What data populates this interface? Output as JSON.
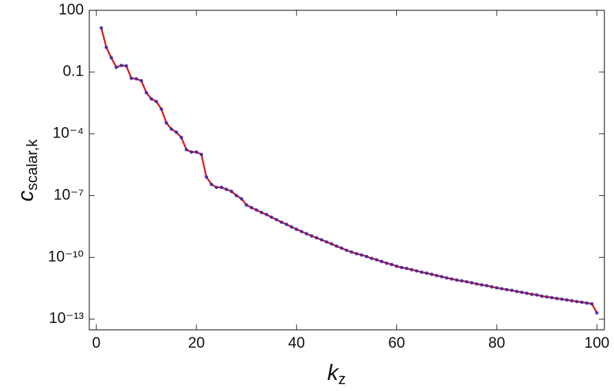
{
  "chart_data": {
    "type": "line",
    "log_y": true,
    "grid": false,
    "xlabel": {
      "main": "k",
      "sub": "z"
    },
    "ylabel": {
      "main": "c",
      "sub": "scalar,k"
    },
    "xlim": [
      -1.4,
      101.5
    ],
    "xticks": [
      0,
      20,
      40,
      60,
      80,
      100
    ],
    "ylim": [
      3e-14,
      100
    ],
    "yticks": [
      100,
      0.1,
      {
        "value": 0.0001,
        "label": "10⁻⁴"
      },
      {
        "value": 1e-07,
        "label": "10⁻⁷"
      },
      {
        "value": 1e-10,
        "label": "10⁻¹⁰"
      },
      {
        "value": 1e-13,
        "label": "10⁻¹³"
      }
    ],
    "x": [
      1,
      2,
      3,
      4,
      5,
      6,
      7,
      8,
      9,
      10,
      11,
      12,
      13,
      14,
      15,
      16,
      17,
      18,
      19,
      20,
      21,
      22,
      23,
      24,
      25,
      26,
      27,
      28,
      29,
      30,
      31,
      32,
      33,
      34,
      35,
      36,
      37,
      38,
      39,
      40,
      41,
      42,
      43,
      44,
      45,
      46,
      47,
      48,
      49,
      50,
      51,
      52,
      53,
      54,
      55,
      56,
      57,
      58,
      59,
      60,
      61,
      62,
      63,
      64,
      65,
      66,
      67,
      68,
      69,
      70,
      71,
      72,
      73,
      74,
      75,
      76,
      77,
      78,
      79,
      80,
      81,
      82,
      83,
      84,
      85,
      86,
      87,
      88,
      89,
      90,
      91,
      92,
      93,
      94,
      95,
      96,
      97,
      98,
      99,
      100
    ],
    "series": [
      {
        "color": "#e01818",
        "marker_color": "#2a2ab8",
        "values": [
          14,
          1.6,
          0.5,
          0.17,
          0.21,
          0.2,
          0.05,
          0.047,
          0.038,
          0.01,
          0.005,
          0.0037,
          0.0016,
          0.00034,
          0.00017,
          0.00012,
          6.6e-05,
          1.7e-05,
          1.3e-05,
          1.3e-05,
          1e-05,
          8e-07,
          3.5e-07,
          2.5e-07,
          2.5e-07,
          2e-07,
          1.6e-07,
          1e-07,
          7e-08,
          3.5e-08,
          2.6e-08,
          2e-08,
          1.5e-08,
          1.2e-08,
          8.9e-09,
          6.8e-09,
          5.1e-09,
          4e-09,
          3e-09,
          2.3e-09,
          1.8e-09,
          1.4e-09,
          1.1e-09,
          8.9e-10,
          7.1e-10,
          5.6e-10,
          4.5e-10,
          3.5e-10,
          2.8e-10,
          2.2e-10,
          1.8e-10,
          1.5e-10,
          1.3e-10,
          1.1e-10,
          8.9e-11,
          7.6e-11,
          6.3e-11,
          5.2e-11,
          4.5e-11,
          3.7e-11,
          3.2e-11,
          2.9e-11,
          2.5e-11,
          2.2e-11,
          1.9e-11,
          1.7e-11,
          1.5e-11,
          1.3e-11,
          1.15e-11,
          1e-11,
          8.9e-12,
          7.9e-12,
          7.2e-12,
          6.5e-12,
          5.8e-12,
          5.1e-12,
          4.6e-12,
          4.2e-12,
          3.7e-12,
          3.3e-12,
          3e-12,
          2.7e-12,
          2.5e-12,
          2.2e-12,
          2e-12,
          1.8e-12,
          1.6e-12,
          1.5e-12,
          1.3e-12,
          1.2e-12,
          1.1e-12,
          1e-12,
          9.3e-13,
          8.5e-13,
          7.8e-13,
          7.1e-13,
          6.6e-13,
          6e-13,
          5.5e-13,
          2e-13
        ]
      }
    ]
  }
}
